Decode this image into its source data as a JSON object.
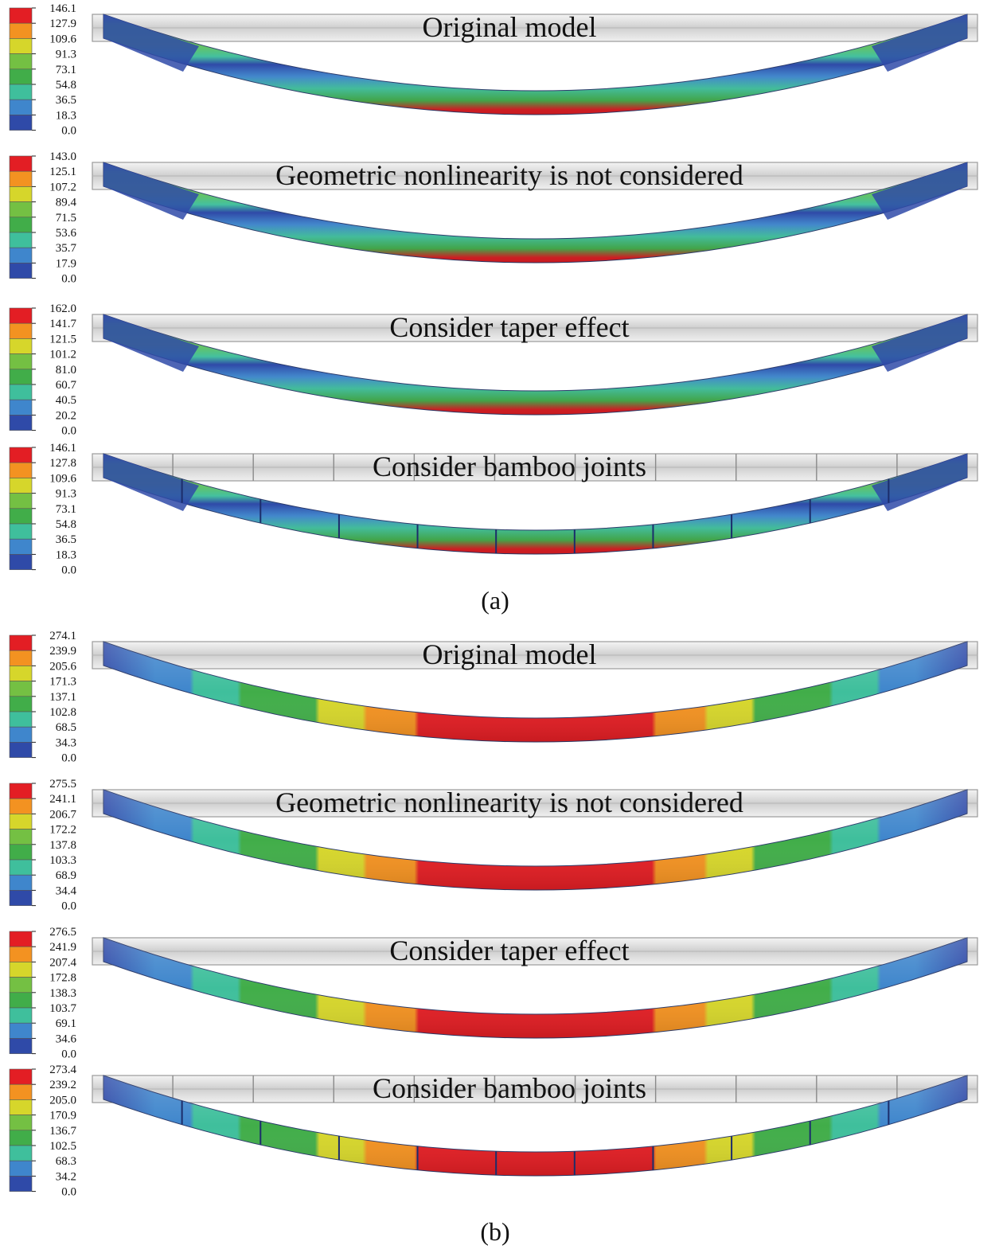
{
  "figure": {
    "groups": [
      {
        "label": "(a)",
        "pattern": "stress",
        "panels": [
          {
            "title": "Original model",
            "legend": [
              "146.1",
              "127.9",
              "109.6",
              "91.3",
              "73.1",
              "54.8",
              "36.5",
              "18.3",
              "0.0"
            ],
            "joints": false
          },
          {
            "title": "Geometric nonlinearity is not considered",
            "legend": [
              "143.0",
              "125.1",
              "107.2",
              "89.4",
              "71.5",
              "53.6",
              "35.7",
              "17.9",
              "0.0"
            ],
            "joints": false
          },
          {
            "title": "Consider taper effect",
            "legend": [
              "162.0",
              "141.7",
              "121.5",
              "101.2",
              "81.0",
              "60.7",
              "40.5",
              "20.2",
              "0.0"
            ],
            "joints": false
          },
          {
            "title": "Consider bamboo joints",
            "legend": [
              "146.1",
              "127.8",
              "109.6",
              "91.3",
              "73.1",
              "54.8",
              "36.5",
              "18.3",
              "0.0"
            ],
            "joints": true
          }
        ]
      },
      {
        "label": "(b)",
        "pattern": "displacement",
        "panels": [
          {
            "title": "Original model",
            "legend": [
              "274.1",
              "239.9",
              "205.6",
              "171.3",
              "137.1",
              "102.8",
              "68.5",
              "34.3",
              "0.0"
            ],
            "joints": false
          },
          {
            "title": "Geometric nonlinearity is not considered",
            "legend": [
              "275.5",
              "241.1",
              "206.7",
              "172.2",
              "137.8",
              "103.3",
              "68.9",
              "34.4",
              "0.0"
            ],
            "joints": false
          },
          {
            "title": "Consider taper effect",
            "legend": [
              "276.5",
              "241.9",
              "207.4",
              "172.8",
              "138.3",
              "103.7",
              "69.1",
              "34.6",
              "0.0"
            ],
            "joints": false
          },
          {
            "title": "Consider bamboo joints",
            "legend": [
              "273.4",
              "239.2",
              "205.0",
              "170.9",
              "136.7",
              "102.5",
              "68.3",
              "34.2",
              "0.0"
            ],
            "joints": true
          }
        ]
      }
    ],
    "colors": {
      "scale": [
        "#e31e24",
        "#f39221",
        "#d6d62b",
        "#74c043",
        "#41ad49",
        "#3fbf9c",
        "#3f86cc",
        "#2f4aa8"
      ],
      "rail": "#dcdcdc"
    }
  }
}
